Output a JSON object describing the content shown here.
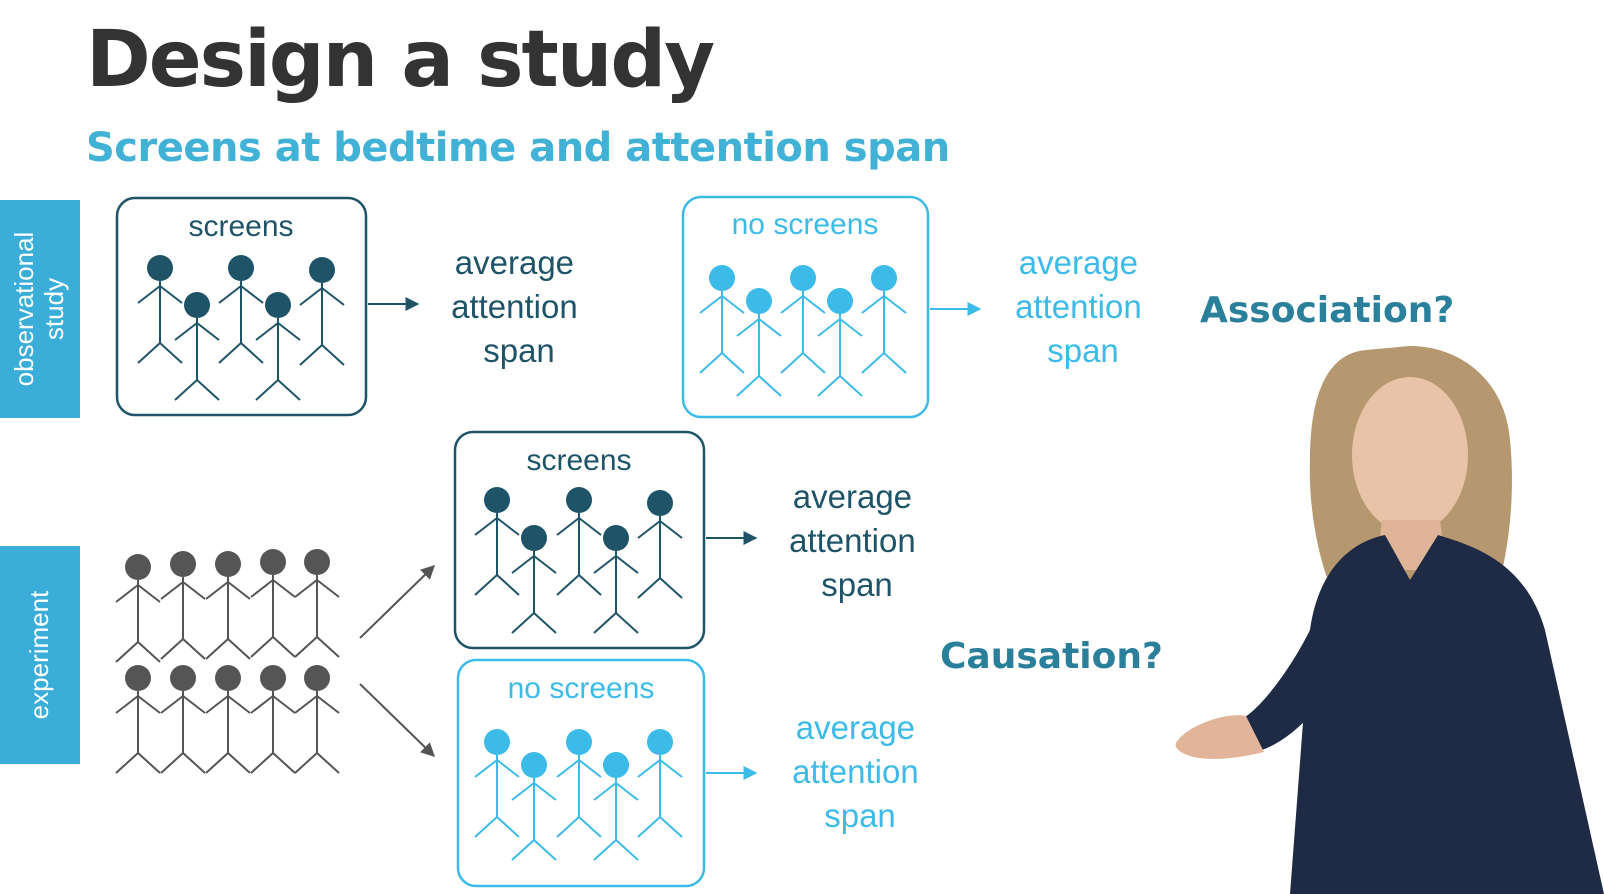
{
  "title": "Design a study",
  "subtitle": "Screens at bedtime and attention span",
  "side_tabs": {
    "observational": [
      "observational",
      "study"
    ],
    "experiment": "experiment"
  },
  "groups": {
    "obs_screens": "screens",
    "obs_no_screens": "no screens",
    "exp_screens": "screens",
    "exp_no_screens": "no screens"
  },
  "outcome_lines": [
    "average",
    "attention",
    "span"
  ],
  "questions": {
    "association": "Association?",
    "causation": "Causation?"
  },
  "colors": {
    "dark": "#1f5468",
    "light": "#3dbbe8",
    "gray": "#555555",
    "tab": "#3aaed8",
    "question": "#2a7f9a"
  }
}
